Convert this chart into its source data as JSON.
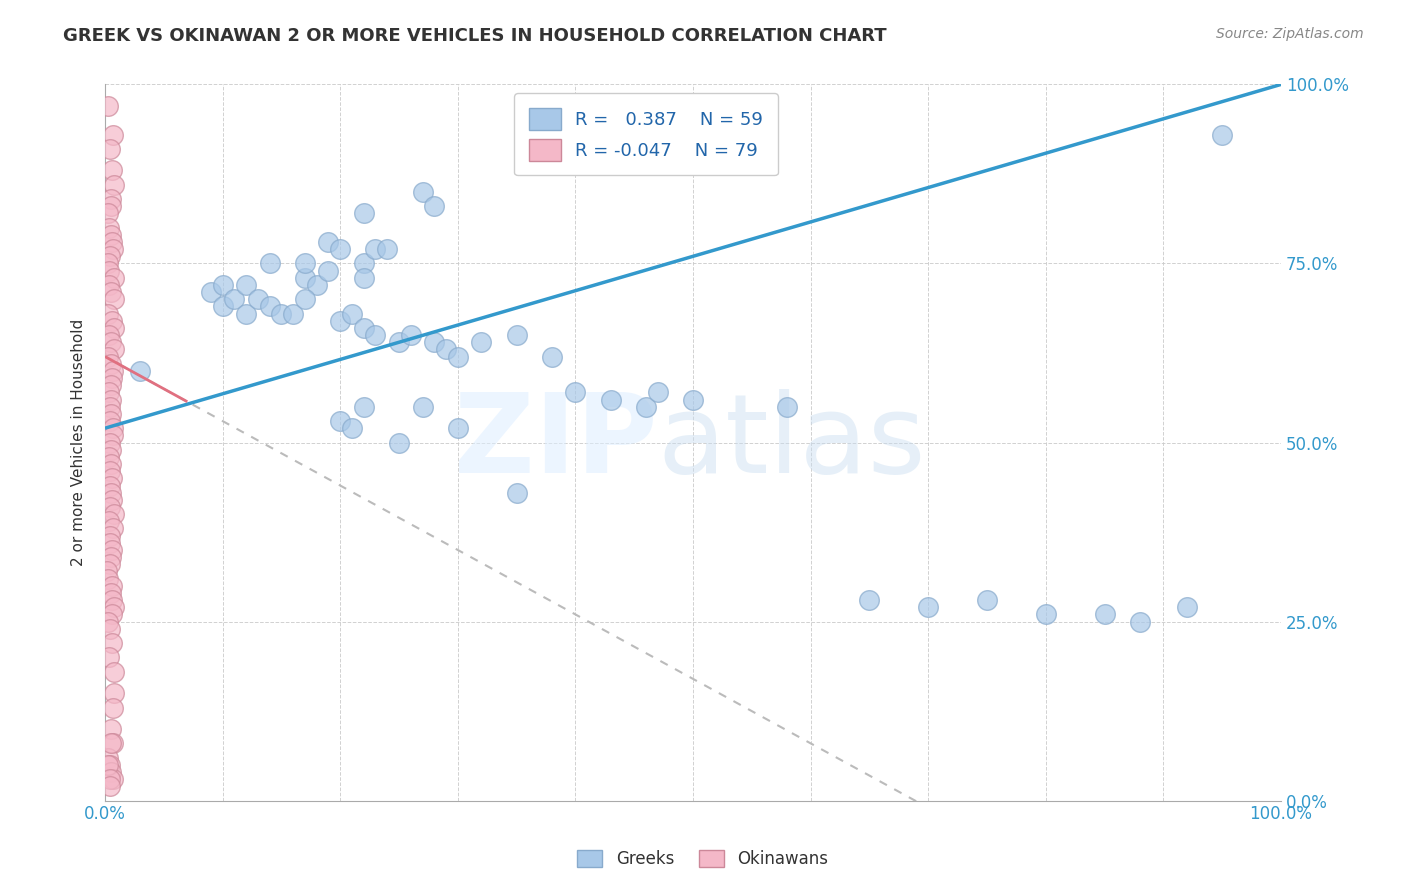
{
  "title": "GREEK VS OKINAWAN 2 OR MORE VEHICLES IN HOUSEHOLD CORRELATION CHART",
  "source": "Source: ZipAtlas.com",
  "ylabel": "2 or more Vehicles in Household",
  "xrange": [
    0.0,
    1.0
  ],
  "yrange": [
    0.0,
    1.0
  ],
  "greeks_R": 0.387,
  "greeks_N": 59,
  "okinawans_R": -0.047,
  "okinawans_N": 79,
  "greek_color": "#a8c8e8",
  "okinawan_color": "#f4b8c8",
  "greek_line_color": "#3399cc",
  "okinawan_line_color": "#e07080",
  "okinawan_dash_color": "#cccccc",
  "greeks_x": [
    0.03,
    0.22,
    0.27,
    0.28,
    0.19,
    0.22,
    0.23,
    0.24,
    0.14,
    0.17,
    0.17,
    0.18,
    0.19,
    0.2,
    0.22,
    0.09,
    0.1,
    0.1,
    0.11,
    0.12,
    0.12,
    0.13,
    0.14,
    0.15,
    0.16,
    0.17,
    0.2,
    0.21,
    0.22,
    0.23,
    0.25,
    0.26,
    0.28,
    0.29,
    0.3,
    0.32,
    0.35,
    0.38,
    0.4,
    0.43,
    0.46,
    0.2,
    0.21,
    0.22,
    0.25,
    0.27,
    0.3,
    0.35,
    0.47,
    0.5,
    0.58,
    0.65,
    0.7,
    0.75,
    0.8,
    0.85,
    0.88,
    0.92,
    0.95
  ],
  "greeks_y": [
    0.6,
    0.82,
    0.85,
    0.83,
    0.78,
    0.75,
    0.77,
    0.77,
    0.75,
    0.73,
    0.75,
    0.72,
    0.74,
    0.77,
    0.73,
    0.71,
    0.69,
    0.72,
    0.7,
    0.68,
    0.72,
    0.7,
    0.69,
    0.68,
    0.68,
    0.7,
    0.67,
    0.68,
    0.66,
    0.65,
    0.64,
    0.65,
    0.64,
    0.63,
    0.62,
    0.64,
    0.65,
    0.62,
    0.57,
    0.56,
    0.55,
    0.53,
    0.52,
    0.55,
    0.5,
    0.55,
    0.52,
    0.43,
    0.57,
    0.56,
    0.55,
    0.28,
    0.27,
    0.28,
    0.26,
    0.26,
    0.25,
    0.27,
    0.93
  ],
  "okinawans_x": [
    0.005,
    0.005,
    0.005,
    0.005,
    0.005,
    0.005,
    0.005,
    0.005,
    0.005,
    0.005,
    0.005,
    0.005,
    0.005,
    0.005,
    0.005,
    0.005,
    0.005,
    0.005,
    0.005,
    0.005,
    0.005,
    0.005,
    0.005,
    0.005,
    0.005,
    0.005,
    0.005,
    0.005,
    0.005,
    0.005,
    0.005,
    0.005,
    0.005,
    0.005,
    0.005,
    0.005,
    0.005,
    0.005,
    0.005,
    0.005,
    0.005,
    0.005,
    0.005,
    0.005,
    0.005,
    0.005,
    0.005,
    0.005,
    0.005,
    0.005,
    0.005,
    0.005,
    0.005,
    0.005,
    0.005,
    0.005,
    0.005,
    0.005,
    0.005,
    0.005,
    0.005,
    0.005,
    0.005,
    0.005,
    0.005,
    0.005,
    0.005,
    0.005,
    0.005,
    0.005,
    0.005,
    0.005,
    0.005,
    0.005,
    0.005,
    0.005,
    0.005,
    0.005,
    0.005
  ],
  "okinawans_y": [
    0.97,
    0.93,
    0.91,
    0.88,
    0.86,
    0.84,
    0.83,
    0.82,
    0.8,
    0.79,
    0.78,
    0.77,
    0.76,
    0.75,
    0.74,
    0.73,
    0.72,
    0.71,
    0.7,
    0.68,
    0.67,
    0.66,
    0.65,
    0.64,
    0.63,
    0.62,
    0.61,
    0.6,
    0.59,
    0.58,
    0.57,
    0.56,
    0.55,
    0.54,
    0.53,
    0.52,
    0.51,
    0.5,
    0.49,
    0.48,
    0.47,
    0.46,
    0.45,
    0.44,
    0.43,
    0.42,
    0.41,
    0.4,
    0.39,
    0.38,
    0.37,
    0.36,
    0.35,
    0.34,
    0.33,
    0.32,
    0.31,
    0.3,
    0.29,
    0.28,
    0.27,
    0.26,
    0.25,
    0.24,
    0.22,
    0.2,
    0.18,
    0.15,
    0.13,
    0.1,
    0.08,
    0.06,
    0.05,
    0.04,
    0.03,
    0.08,
    0.05,
    0.03,
    0.02
  ]
}
